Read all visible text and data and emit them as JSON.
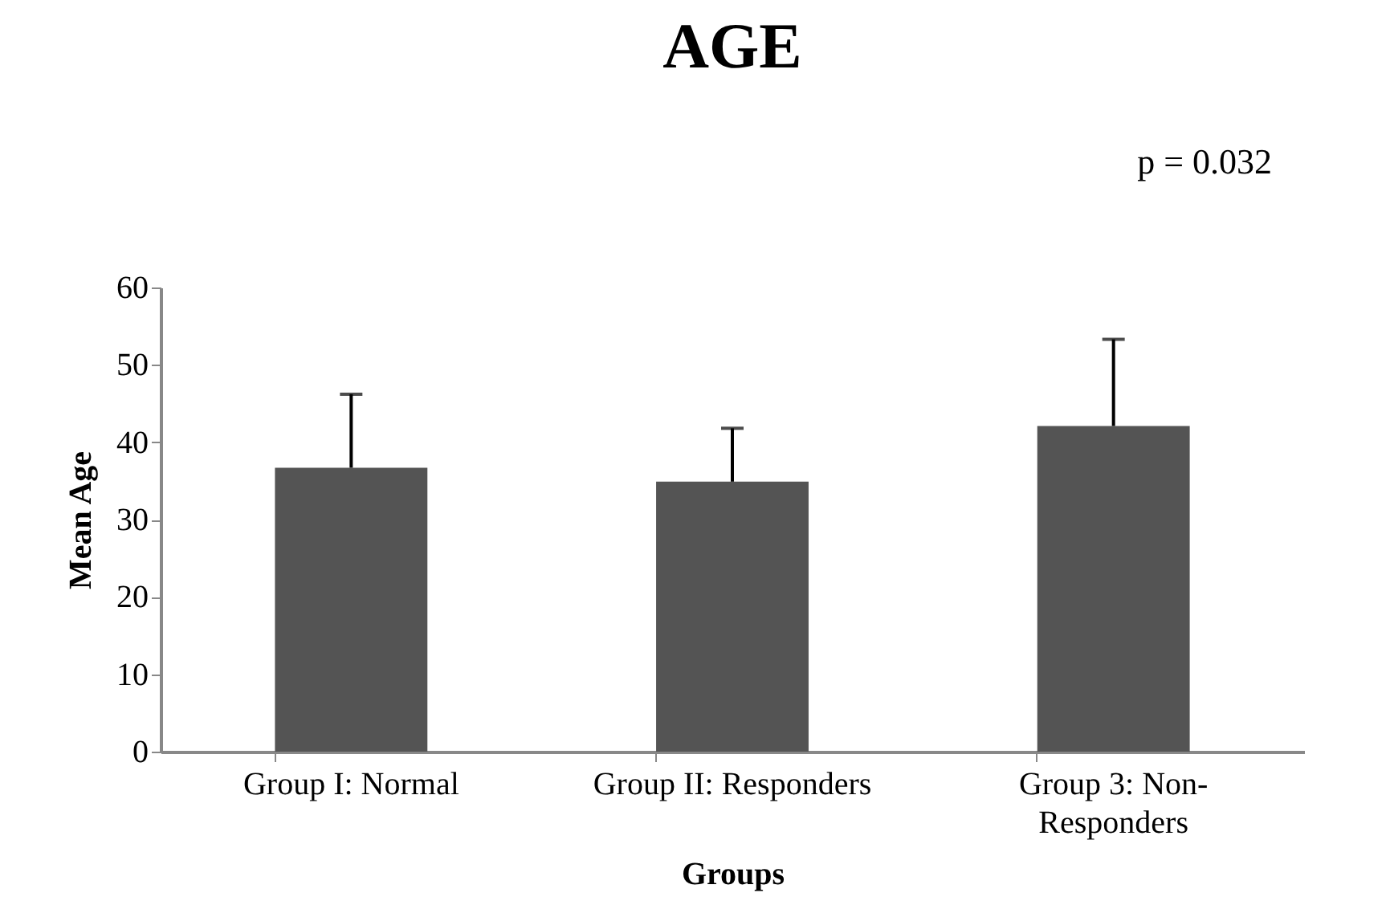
{
  "chart_data": {
    "type": "bar",
    "title": "AGE",
    "xlabel": "Groups",
    "ylabel": "Mean Age",
    "annotations": [
      "p = 0.032"
    ],
    "categories": [
      "Group I: Normal",
      "Group II: Responders",
      "Group 3: Non-Responders"
    ],
    "values": [
      36.7,
      34.9,
      42.1
    ],
    "color": "#545454",
    "errors": [
      [
        36.7,
        46.2
      ],
      [
        34.9,
        41.8
      ],
      [
        42.1,
        53.3
      ]
    ],
    "ylim": [
      0,
      60
    ],
    "yticks": [
      0,
      10,
      20,
      30,
      40,
      50,
      60
    ],
    "grid": false
  }
}
